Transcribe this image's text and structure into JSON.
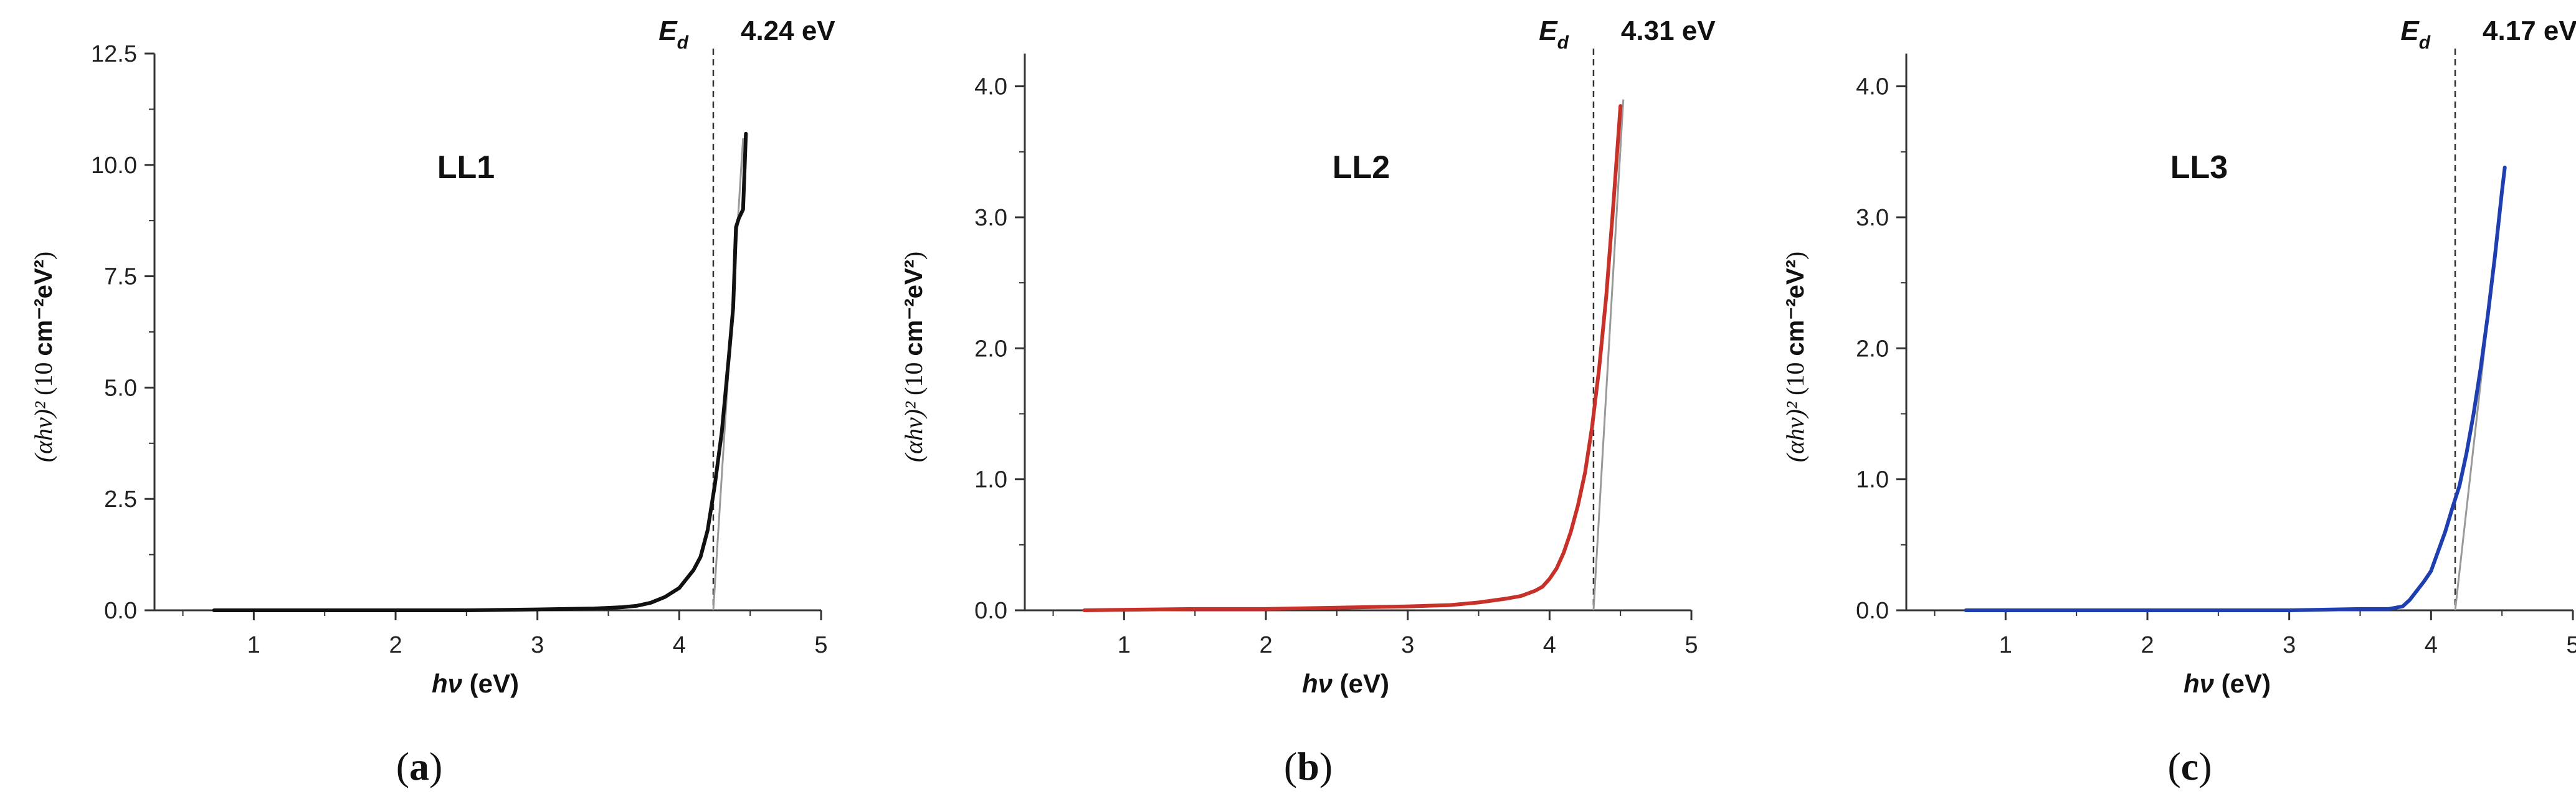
{
  "figure": {
    "edge_symbol": "E",
    "edge_subscript": "d"
  },
  "chart_data": [
    {
      "type": "line",
      "panel": "a",
      "sample": "LL1",
      "color": "#111111",
      "edge_value_label": "4.24 eV",
      "edge_x": 4.24,
      "xlabel": "hν (eV)",
      "ylabel": "(αhν)² (10 cm⁻²eV²)",
      "xlim": [
        0.3,
        5
      ],
      "ylim": [
        0,
        12.5
      ],
      "x_ticks": [
        1,
        2,
        3,
        4,
        5
      ],
      "y_ticks": [
        0.0,
        2.5,
        5.0,
        7.5,
        10.0,
        12.5
      ],
      "y_tick_labels": [
        "0.0",
        "2.5",
        "5.0",
        "7.5",
        "10.0",
        "12.5"
      ],
      "x_tick_labels": [
        "1",
        "2",
        "3",
        "4",
        "5"
      ],
      "series": [
        {
          "name": "LL1",
          "x": [
            0.72,
            1.5,
            2.5,
            3.0,
            3.4,
            3.6,
            3.7,
            3.8,
            3.9,
            4.0,
            4.05,
            4.1,
            4.15,
            4.2,
            4.25,
            4.3,
            4.35,
            4.38,
            4.4,
            4.42,
            4.45,
            4.47
          ],
          "y": [
            0.0,
            0.0,
            0.0,
            0.02,
            0.04,
            0.07,
            0.1,
            0.17,
            0.3,
            0.5,
            0.7,
            0.9,
            1.2,
            1.8,
            2.8,
            4.0,
            5.7,
            6.8,
            8.6,
            8.8,
            9.0,
            10.7
          ]
        }
      ],
      "tangent": {
        "x": [
          4.24,
          4.45
        ],
        "y": [
          0,
          10.6
        ]
      }
    },
    {
      "type": "line",
      "panel": "b",
      "sample": "LL2",
      "color": "#c8302a",
      "edge_value_label": "4.31 eV",
      "edge_x": 4.31,
      "xlabel": "hν (eV)",
      "ylabel": "(αhν)² (10 cm⁻²eV²)",
      "xlim": [
        0.3,
        5
      ],
      "ylim": [
        0,
        4.25
      ],
      "x_ticks": [
        1,
        2,
        3,
        4,
        5
      ],
      "y_ticks": [
        0.0,
        1.0,
        2.0,
        3.0,
        4.0
      ],
      "y_tick_labels": [
        "0.0",
        "1.0",
        "2.0",
        "3.0",
        "4.0"
      ],
      "x_tick_labels": [
        "1",
        "2",
        "3",
        "4",
        "5"
      ],
      "series": [
        {
          "name": "LL2",
          "x": [
            0.72,
            1.5,
            2.0,
            2.5,
            3.0,
            3.3,
            3.5,
            3.7,
            3.8,
            3.9,
            3.95,
            4.0,
            4.05,
            4.1,
            4.15,
            4.2,
            4.25,
            4.3,
            4.35,
            4.4,
            4.45,
            4.5
          ],
          "y": [
            0.0,
            0.01,
            0.01,
            0.02,
            0.03,
            0.04,
            0.06,
            0.09,
            0.11,
            0.15,
            0.18,
            0.24,
            0.32,
            0.44,
            0.6,
            0.8,
            1.05,
            1.4,
            1.85,
            2.4,
            3.1,
            3.85
          ]
        }
      ],
      "tangent": {
        "x": [
          4.31,
          4.52
        ],
        "y": [
          0,
          3.9
        ]
      }
    },
    {
      "type": "line",
      "panel": "c",
      "sample": "LL3",
      "color": "#1f3fb0",
      "edge_value_label": "4.17 eV",
      "edge_x": 4.17,
      "xlabel": "hν (eV)",
      "ylabel": "(αhν)² (10 cm⁻²eV²)",
      "xlim": [
        0.3,
        5
      ],
      "ylim": [
        0,
        4.25
      ],
      "x_ticks": [
        1,
        2,
        3,
        4,
        5
      ],
      "y_ticks": [
        0.0,
        1.0,
        2.0,
        3.0,
        4.0
      ],
      "y_tick_labels": [
        "0.0",
        "1.0",
        "2.0",
        "3.0",
        "4.0"
      ],
      "x_tick_labels": [
        "1",
        "2",
        "3",
        "4",
        "5"
      ],
      "series": [
        {
          "name": "LL3",
          "x": [
            0.72,
            1.5,
            2.5,
            3.0,
            3.5,
            3.7,
            3.8,
            3.85,
            3.9,
            3.95,
            4.0,
            4.05,
            4.1,
            4.15,
            4.2,
            4.25,
            4.3,
            4.35,
            4.4,
            4.45,
            4.5,
            4.52
          ],
          "y": [
            0.0,
            0.0,
            0.0,
            0.0,
            0.01,
            0.01,
            0.03,
            0.08,
            0.15,
            0.22,
            0.3,
            0.45,
            0.6,
            0.78,
            0.95,
            1.2,
            1.5,
            1.85,
            2.25,
            2.7,
            3.2,
            3.38
          ]
        }
      ],
      "tangent": {
        "x": [
          4.17,
          4.52
        ],
        "y": [
          0,
          3.38
        ]
      }
    }
  ]
}
